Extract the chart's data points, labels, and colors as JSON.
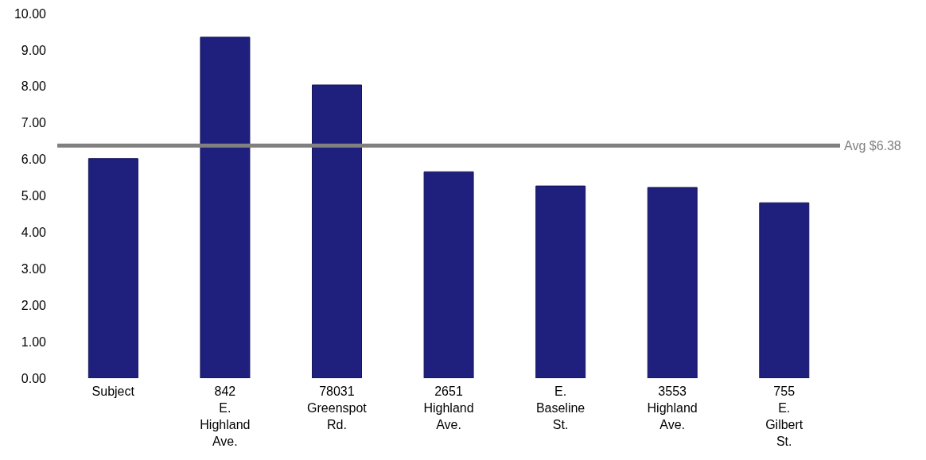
{
  "chart_data": {
    "type": "bar",
    "categories": [
      "Subject",
      "842 E. Highland Ave.",
      "78031 Greenspot Rd.",
      "2651 Highland Ave.",
      "E. Baseline St.",
      "3553 Highland Ave.",
      "755 E. Gilbert St."
    ],
    "values": [
      6.02,
      9.35,
      8.04,
      5.66,
      5.27,
      5.23,
      4.81
    ],
    "color": "#1f1f7d",
    "ylim": [
      0,
      10
    ],
    "yticks": [
      {
        "value": 0,
        "label": "0.00"
      },
      {
        "value": 1,
        "label": "1.00"
      },
      {
        "value": 2,
        "label": "2.00"
      },
      {
        "value": 3,
        "label": "3.00"
      },
      {
        "value": 4,
        "label": "4.00"
      },
      {
        "value": 5,
        "label": "5.00"
      },
      {
        "value": 6,
        "label": "6.00"
      },
      {
        "value": 7,
        "label": "7.00"
      },
      {
        "value": 8,
        "label": "8.00"
      },
      {
        "value": 9,
        "label": "9.00"
      },
      {
        "value": 10,
        "label": "10.00"
      }
    ],
    "ref_lines": [
      {
        "axis": "y",
        "value": 6.38,
        "label": "Avg $6.38",
        "color": "#808080"
      }
    ],
    "grid": false,
    "legend": false
  }
}
